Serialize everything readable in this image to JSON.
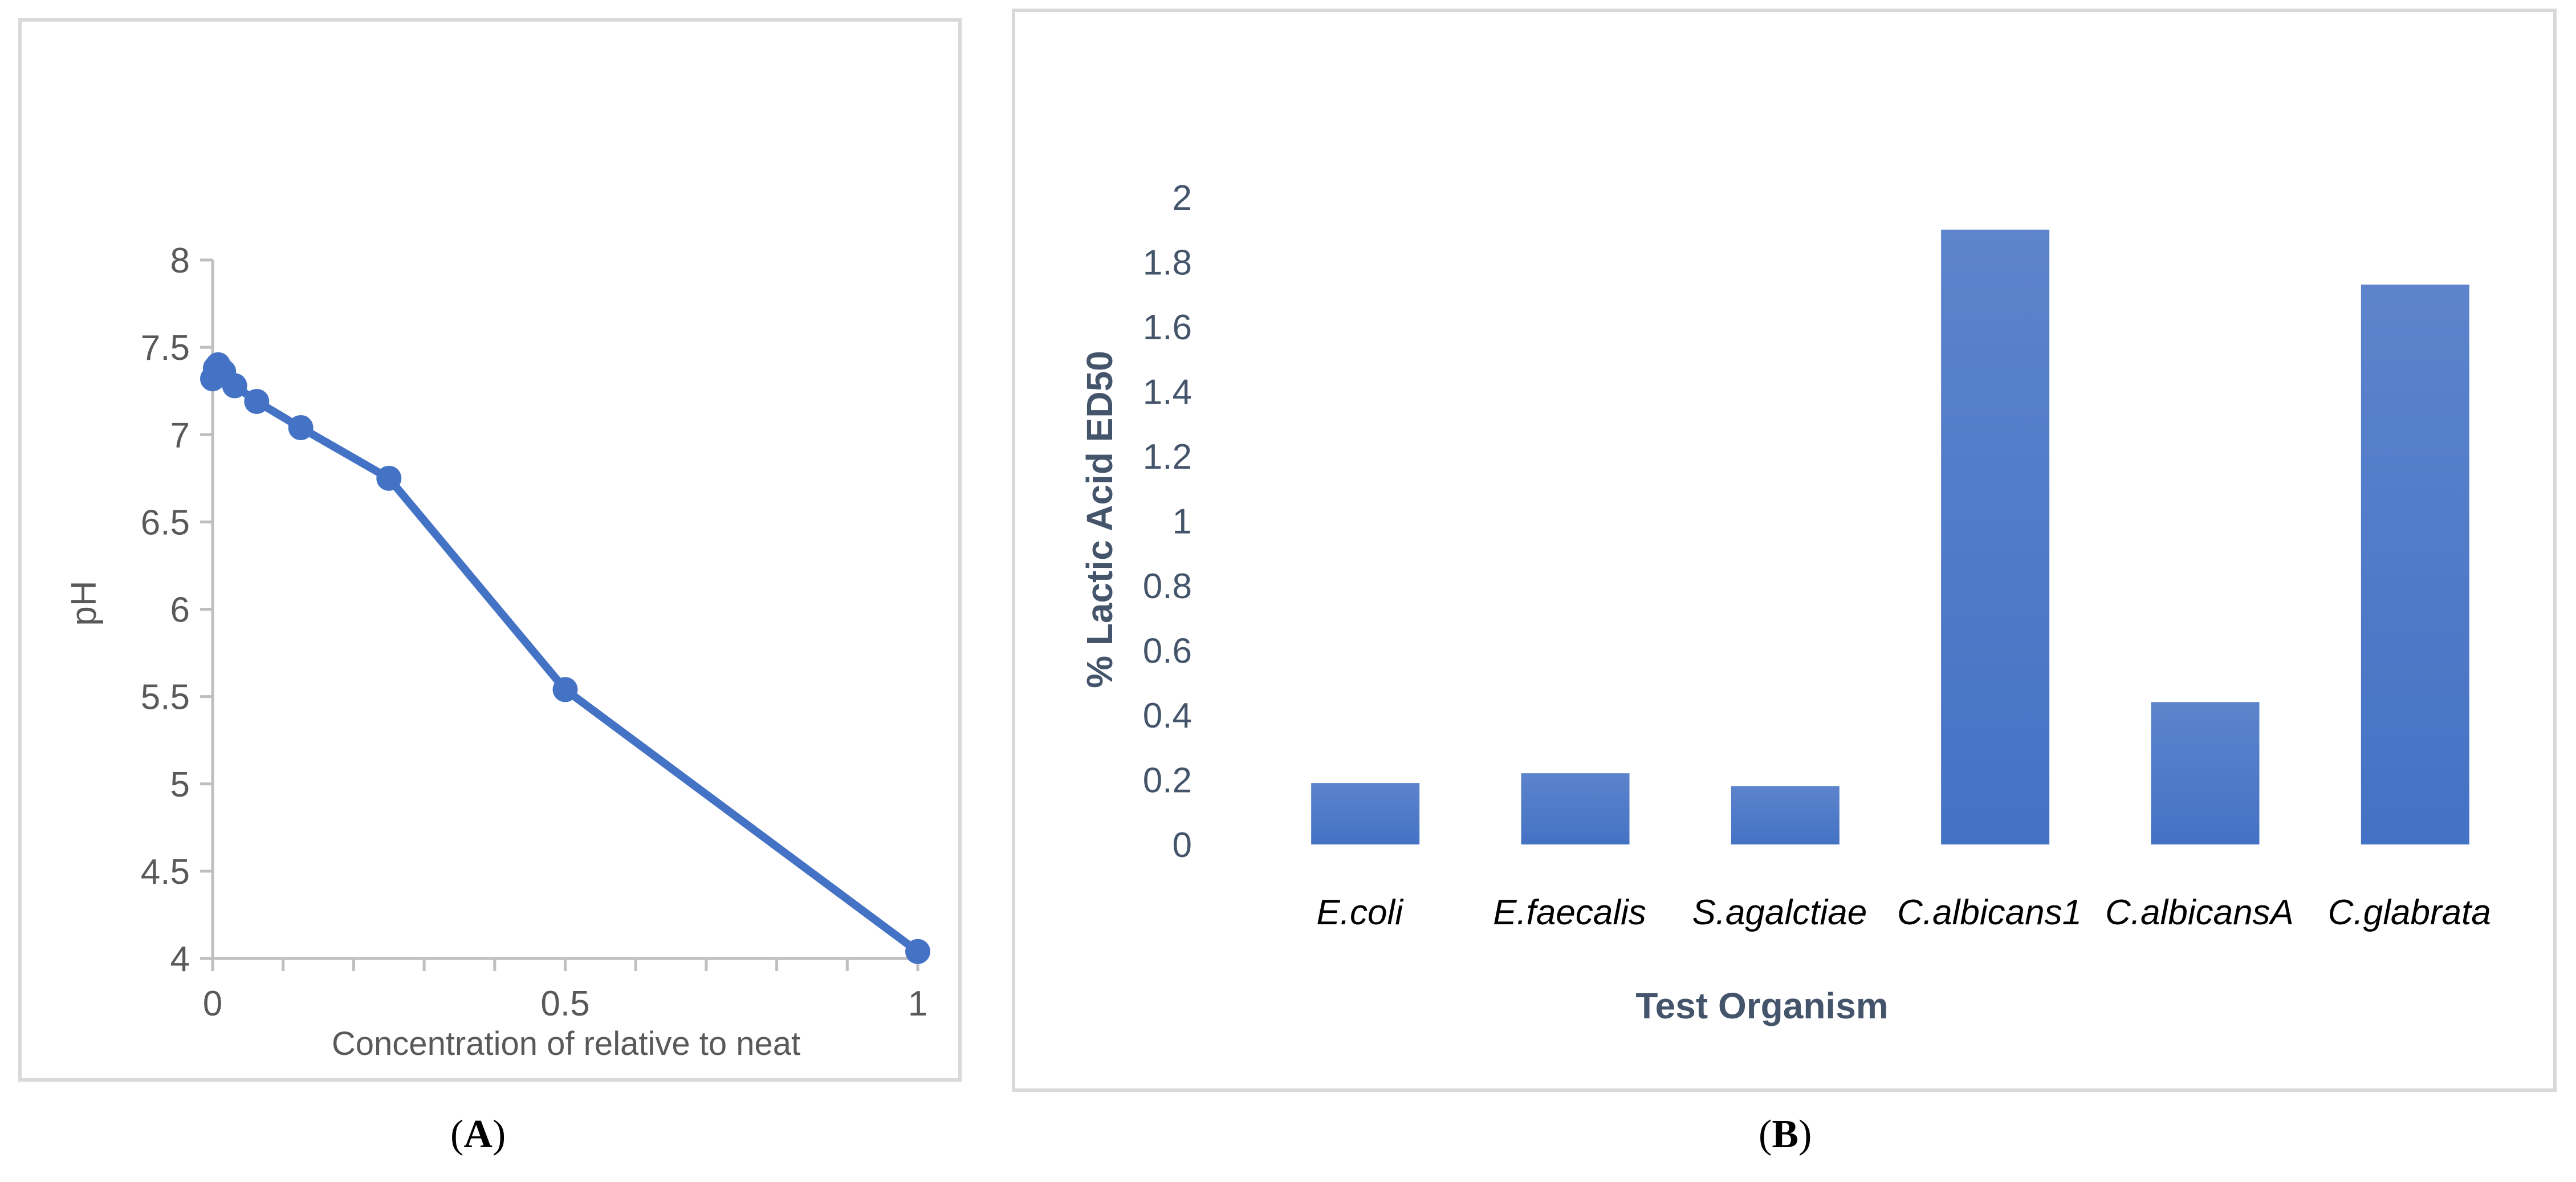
{
  "chart_data": [
    {
      "type": "line",
      "panel_label": "A",
      "xlabel": "Concentration of relative to neat",
      "ylabel": "pH",
      "xlim": [
        0,
        1
      ],
      "ylim": [
        4,
        8
      ],
      "x_ticks": [
        "0",
        "0.5",
        "1"
      ],
      "y_ticks": [
        "4",
        "4.5",
        "5",
        "5.5",
        "6",
        "6.5",
        "7",
        "7.5",
        "8"
      ],
      "series": [
        {
          "name": "pH",
          "color": "#4472c4",
          "x": [
            0,
            0.0039,
            0.0078,
            0.0156,
            0.03125,
            0.0625,
            0.125,
            0.25,
            0.5,
            1
          ],
          "y": [
            7.32,
            7.38,
            7.4,
            7.36,
            7.28,
            7.19,
            7.04,
            6.75,
            5.54,
            4.04
          ]
        }
      ]
    },
    {
      "type": "bar",
      "panel_label": "B",
      "xlabel": "Test Organism",
      "ylabel": "% Lactic Acid ED50",
      "ylim": [
        0,
        2
      ],
      "y_ticks": [
        "0",
        "0.2",
        "0.4",
        "0.6",
        "0.8",
        "1",
        "1.2",
        "1.4",
        "1.6",
        "1.8",
        "2"
      ],
      "categories": [
        "E.coli",
        "E.faecalis",
        "S.agalctiae",
        "C.albicans1",
        "C.albicansA",
        "C.glabrata"
      ],
      "values": [
        0.19,
        0.22,
        0.18,
        1.9,
        0.44,
        1.73
      ],
      "color": "#4472c4"
    }
  ]
}
